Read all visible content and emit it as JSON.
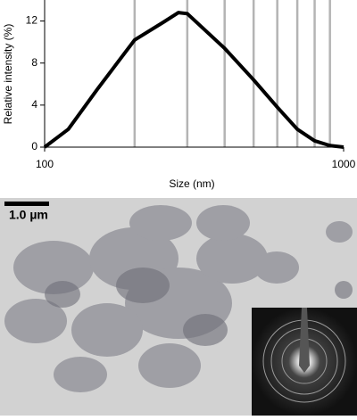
{
  "chart_data": {
    "type": "line",
    "x_label": "Size (nm)",
    "y_label": "Relative intensity (%)",
    "x": [
      100,
      120,
      150,
      200,
      250,
      280,
      300,
      400,
      500,
      600,
      700,
      800,
      900,
      1000
    ],
    "series": [
      {
        "color": "#000000",
        "values": [
          0,
          1.7,
          5.5,
          10.2,
          11.9,
          12.8,
          12.7,
          9.4,
          6.4,
          3.8,
          1.7,
          0.6,
          0.15,
          0
        ]
      }
    ],
    "x_log": true,
    "xlim": [
      100,
      1000
    ],
    "ylim": [
      0,
      14
    ],
    "xticks": [
      100,
      1000
    ],
    "yticks": [
      0,
      4,
      8,
      12
    ],
    "x_gridlines": [
      200,
      300,
      400,
      500,
      600,
      700,
      800,
      900
    ],
    "grid_color": "#b4b4b4"
  },
  "image": {
    "scale_bar": "1.0 µm"
  }
}
